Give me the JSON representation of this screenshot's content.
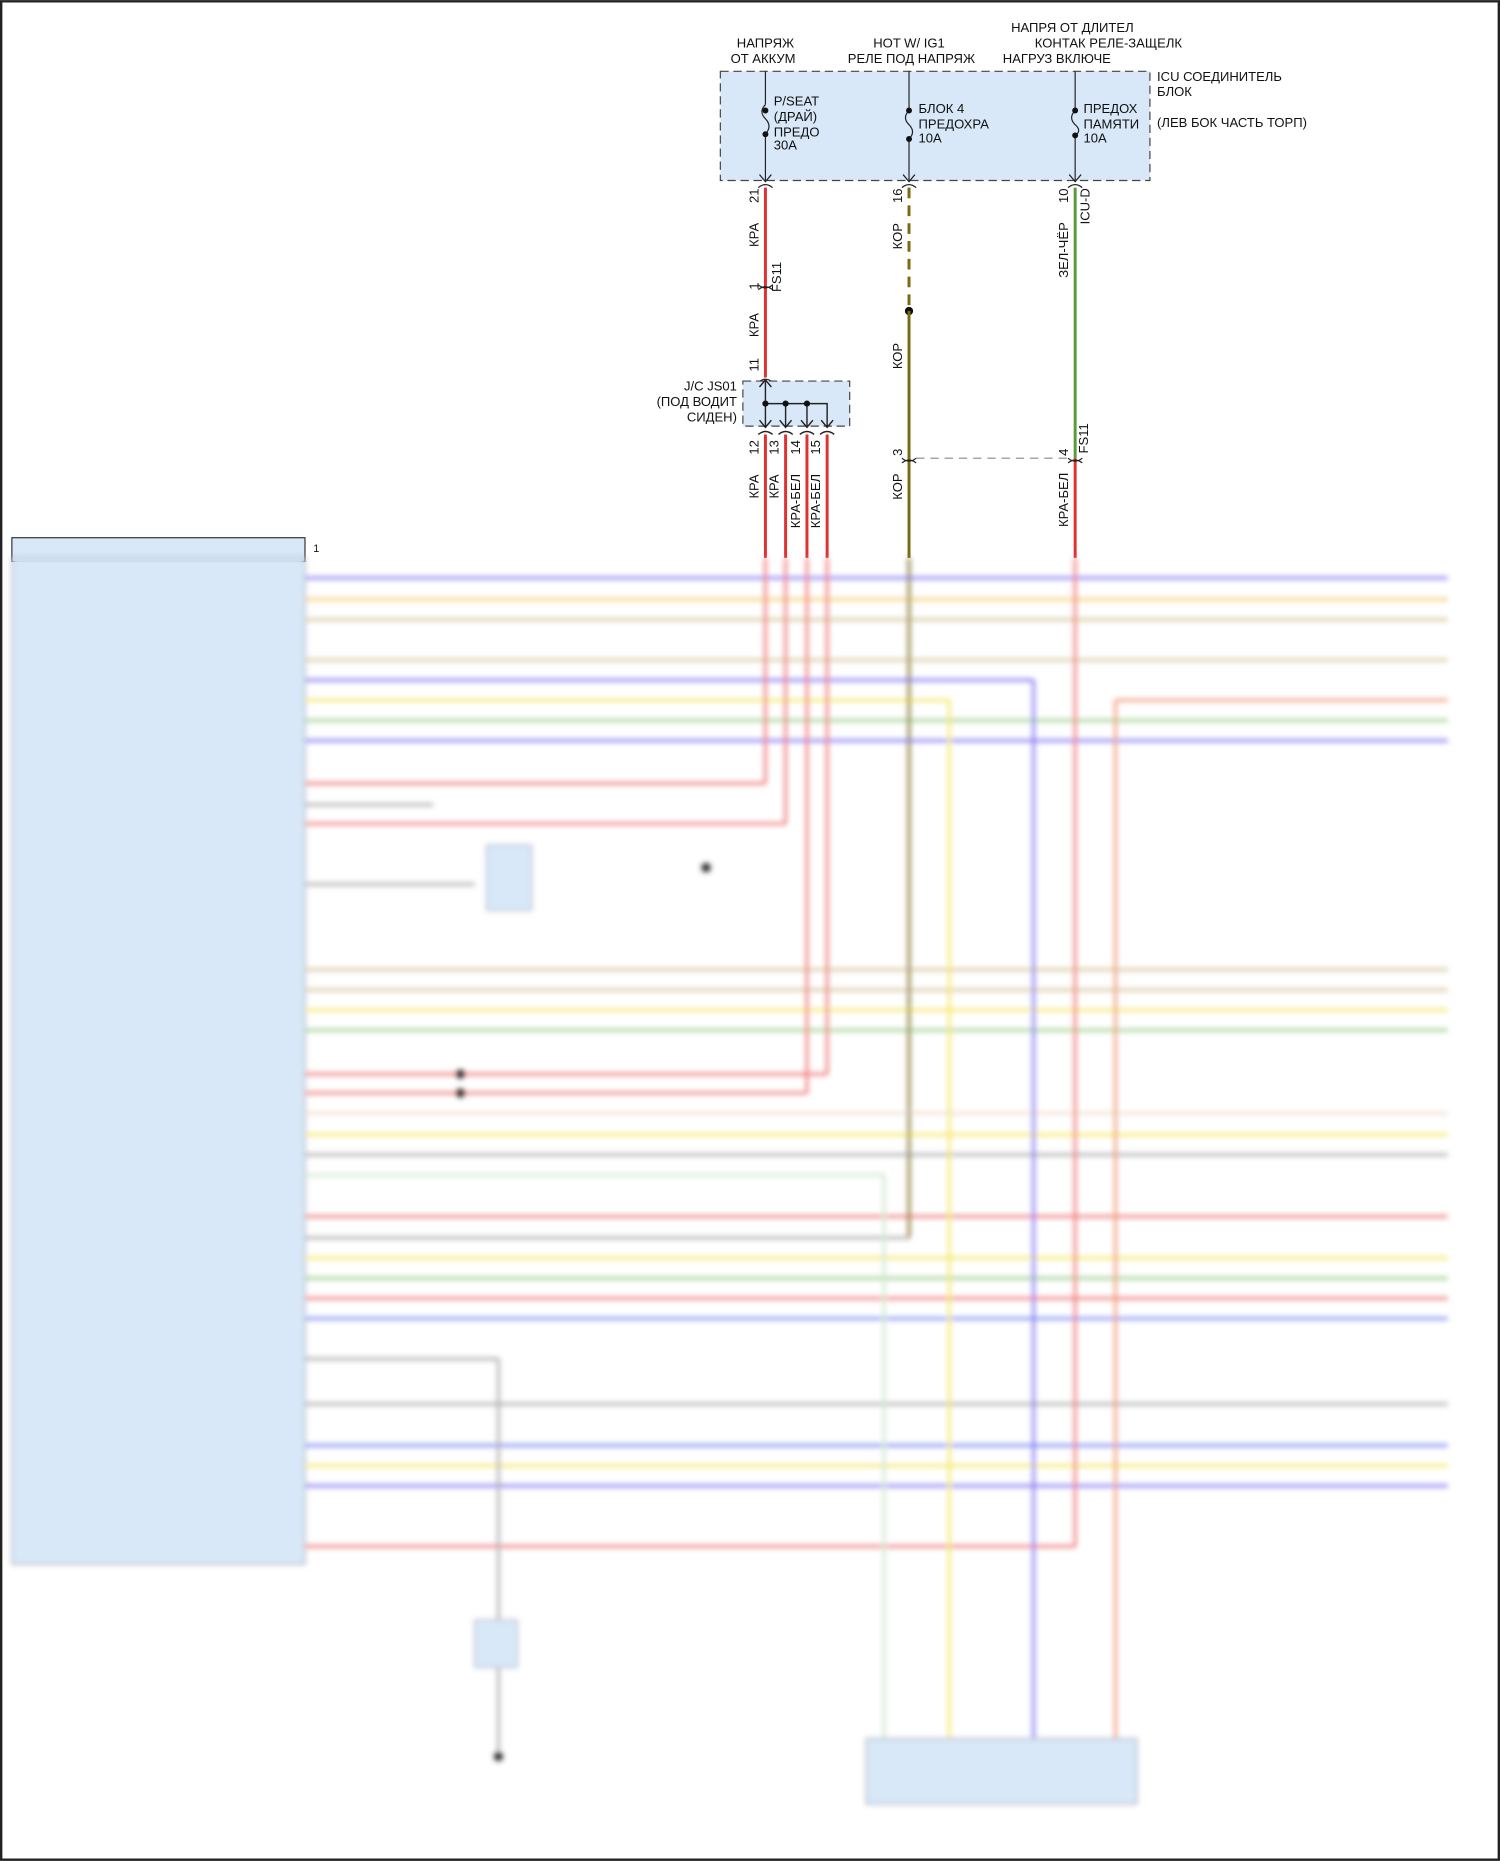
{
  "header": {
    "battery_feed": [
      "НАПРЯЖ",
      "ОТ АККУМ"
    ],
    "ig1_feed": [
      "HOT W/ IG1",
      "РЕЛЕ ПОД НАПРЯЖ"
    ],
    "latch_feed": [
      "НАПРЯ ОТ ДЛИТЕЛ",
      "КОНТАК РЕЛЕ-ЗАЩЕЛК",
      "НАГРУЗ ВКЛЮЧЕ"
    ]
  },
  "icu_block": {
    "title": [
      "ICU СОЕДИНИТЕЛЬ",
      "БЛОК"
    ],
    "location": "(ЛЕВ БОК ЧАСТЬ ТОРП)",
    "fuses": [
      {
        "label": [
          "P/SEAT",
          "(ДРАЙ)",
          "ПРЕДО",
          "30A"
        ],
        "pin": "21"
      },
      {
        "label": [
          "БЛОК 4",
          "ПРЕДОХРА",
          "10A"
        ],
        "pin": "16"
      },
      {
        "label": [
          "ПРЕДОХ",
          "ПАМЯТИ",
          "10A"
        ],
        "pin": "10"
      }
    ],
    "connector": "ICU-D"
  },
  "wires": {
    "w1_upper": "КРА",
    "w1_mid": "КРА",
    "fs11_pin": "1",
    "fs11_label": "FS11",
    "jc_in_pin": "11",
    "w2_upper": "КОР",
    "w2_mid": "КОР",
    "w2_lower": "КОР",
    "w2_pin": "3",
    "w3_upper": "ЗЕЛ-ЧЁР",
    "w3_pin": "4",
    "w3_fs11": "FS11",
    "w3_lower": "КРА-БЕЛ"
  },
  "junction": {
    "label": [
      "J/C JS01",
      "(ПОД ВОДИТ",
      "СИДЕН)"
    ],
    "outputs": [
      {
        "pin": "12",
        "color": "КРА"
      },
      {
        "pin": "13",
        "color": "КРА"
      },
      {
        "pin": "14",
        "color": "КРА-БЕЛ"
      },
      {
        "pin": "15",
        "color": "КРА-БЕЛ"
      }
    ]
  },
  "module": {
    "pin1": "1"
  },
  "colors": {
    "red": "#e03030",
    "brown": "#7a6a10",
    "green": "#5a9a3a",
    "purple": "#6a60e0",
    "yellow": "#f0e040",
    "block_fill": "#d8e8f8"
  }
}
